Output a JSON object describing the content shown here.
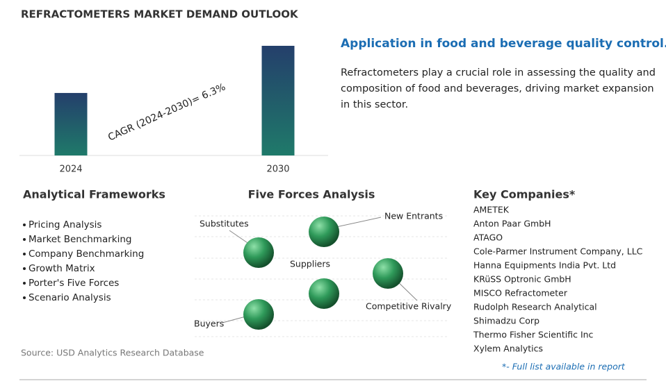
{
  "title": "REFRACTOMETERS MARKET DEMAND OUTLOOK",
  "chart_data": {
    "type": "bar",
    "categories": [
      "2024",
      "2030"
    ],
    "values": [
      57,
      100
    ],
    "ylim": [
      0,
      100
    ],
    "annotation": "CAGR (2024-2030)=  6.3%"
  },
  "highlight": {
    "heading": "Application in food and beverage quality control.",
    "text_lines": [
      "Refractometers play a crucial role in assessing the quality and",
      "composition of food and beverages, driving market expansion",
      "in this sector."
    ]
  },
  "frameworks": {
    "title": "Analytical Frameworks",
    "items": [
      "Pricing Analysis",
      "Market Benchmarking",
      "Company Benchmarking",
      "Growth Matrix",
      "Porter's Five Forces",
      "Scenario Analysis"
    ]
  },
  "five_forces": {
    "title": "Five Forces Analysis",
    "labels": [
      "Substitutes",
      "New Entrants",
      "Suppliers",
      "Competitive Rivalry",
      "Buyers"
    ]
  },
  "companies": {
    "title": "Key Companies*",
    "items": [
      "AMETEK",
      "Anton Paar GmbH",
      "ATAGO",
      "Cole-Parmer Instrument Company, LLC",
      "Hanna Equipments India Pvt. Ltd",
      "KRüSS Optronic GmbH",
      "MISCO Refractometer",
      "Rudolph Research Analytical",
      "Shimadzu Corp",
      "Thermo Fisher Scientific Inc",
      "Xylem Analytics"
    ],
    "note": "*- Full list available in report"
  },
  "source": "Source: USD Analytics Research Database"
}
